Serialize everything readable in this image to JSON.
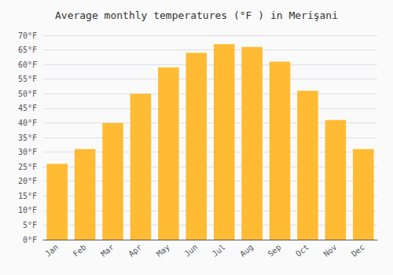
{
  "chart_data": {
    "type": "bar",
    "title": "Average monthly temperatures (°F ) in Merişani",
    "categories": [
      "Jan",
      "Feb",
      "Mar",
      "Apr",
      "May",
      "Jun",
      "Jul",
      "Aug",
      "Sep",
      "Oct",
      "Nov",
      "Dec"
    ],
    "values": [
      26,
      31,
      40,
      50,
      59,
      64,
      67,
      66,
      61,
      51,
      41,
      31
    ],
    "color": "#FFBB33",
    "ylim": [
      0,
      70
    ],
    "yticks": [
      {
        "value": 0,
        "label": "0°F"
      },
      {
        "value": 5,
        "label": "5°F"
      },
      {
        "value": 10,
        "label": "10°F"
      },
      {
        "value": 15,
        "label": "15°F"
      },
      {
        "value": 20,
        "label": "20°F"
      },
      {
        "value": 25,
        "label": "25°F"
      },
      {
        "value": 30,
        "label": "30°F"
      },
      {
        "value": 35,
        "label": "35°F"
      },
      {
        "value": 40,
        "label": "40°F"
      },
      {
        "value": 45,
        "label": "45°F"
      },
      {
        "value": 50,
        "label": "50°F"
      },
      {
        "value": 55,
        "label": "55°F"
      },
      {
        "value": 60,
        "label": "60°F"
      },
      {
        "value": 65,
        "label": "65°F"
      },
      {
        "value": 70,
        "label": "70°F"
      }
    ],
    "grid": true
  }
}
